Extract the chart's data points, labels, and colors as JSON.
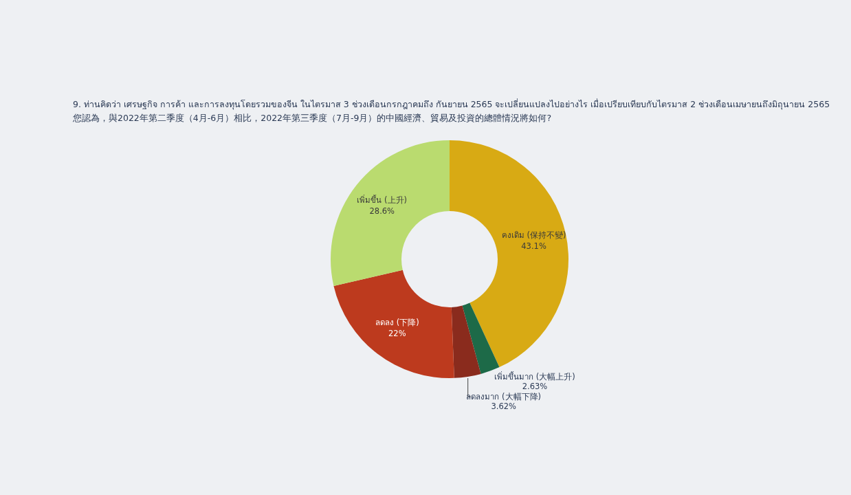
{
  "chart_data": {
    "type": "donut",
    "title": "9. ท่านคิดว่า เศรษฐกิจ การค้า และการลงทุนโดยรวมของจีน ในไตรมาส 3 ช่วงเดือนกรกฎาคมถึง กันยายน 2565 จะเปลี่ยนแปลงไปอย่างไร เมื่อเปรียบเทียบกับไตรมาส 2 ช่วงเดือนเมษายนถึงมิถุนายน 2565",
    "subtitle": "您認為，與2022年第二季度（4月-6月）相比，2022年第三季度（7月-9月）的中國經濟、貿易及投資的總體情況將如何?",
    "categories": [
      "คงเดิม (保持不變)",
      "เพิ่มขึ้นมาก (大幅上升)",
      "ลดลงมาก (大幅下降)",
      "ลดลง (下降)",
      "เพิ่มขึ้น (上升)"
    ],
    "values": [
      43.1,
      2.63,
      3.62,
      22,
      28.6
    ],
    "colors": [
      "#d8aa14",
      "#1d6a48",
      "#8a2b1d",
      "#bd3a1e",
      "#badb6f"
    ],
    "value_labels": [
      "43.1%",
      "2.63%",
      "3.62%",
      "22%",
      "28.6%"
    ]
  }
}
